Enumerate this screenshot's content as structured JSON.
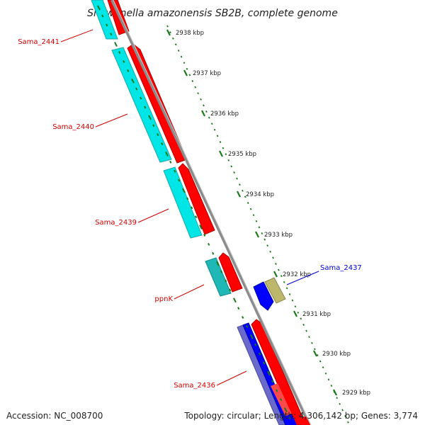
{
  "title": "Shewanella amazonensis SB2B, complete genome",
  "footer": {
    "accession": "Accession: NC_008700",
    "topology": "Topology: circular; Length: 4,306,142 bp; Genes: 3,774"
  },
  "colors": {
    "backbone": "#8c8c8c",
    "tick": "#1a7a1a",
    "cds_forward": "#ff0000",
    "cds_reverse": "#00e5e5",
    "cds_reverse_dark": "#20b7b7",
    "cds_blue": "#0000ff",
    "cds_blue_shadow": "#6a6acd",
    "cds_khaki": "#bdb76b",
    "label_red": "#cc0000",
    "label_blue": "#0000cc"
  },
  "scale_ticks": [
    {
      "label": "2938 kbp"
    },
    {
      "label": "2937 kbp"
    },
    {
      "label": "2936 kbp"
    },
    {
      "label": "2935 kbp"
    },
    {
      "label": "2934 kbp"
    },
    {
      "label": "2933 kbp"
    },
    {
      "label": "2932 kbp"
    },
    {
      "label": "2931 kbp"
    },
    {
      "label": "2930 kbp"
    },
    {
      "label": "2929 kbp"
    }
  ],
  "gene_labels": [
    {
      "name": "Sama_2441",
      "color": "red"
    },
    {
      "name": "Sama_2440",
      "color": "red"
    },
    {
      "name": "Sama_2439",
      "color": "red"
    },
    {
      "name": "ppnK",
      "color": "red"
    },
    {
      "name": "Sama_2436",
      "color": "red"
    },
    {
      "name": "Sama_2437",
      "color": "blue"
    }
  ]
}
